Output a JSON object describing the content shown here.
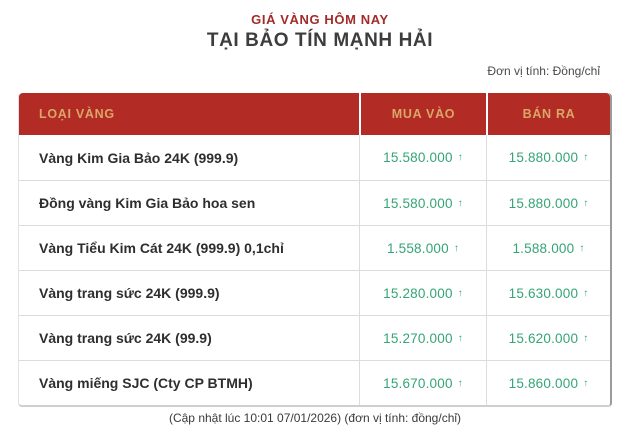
{
  "page": {
    "title_small": "GIÁ VÀNG HÔM NAY",
    "title_main": "TẠI BẢO TÍN MẠNH HẢI",
    "unit_note": "Đơn vị tính: Đồng/chỉ",
    "footer_note": "(Cập nhật lúc 10:01 07/01/2026) (đơn vị tính: đồng/chỉ)"
  },
  "colors": {
    "header_bg": "#b22b25",
    "header_text": "#d9a767",
    "title_red": "#a32b29",
    "price_green": "#35a477"
  },
  "table": {
    "columns": [
      "LOẠI VÀNG",
      "MUA VÀO",
      "BÁN RA"
    ],
    "trend_up_icon": "↑",
    "rows": [
      {
        "label": "Vàng Kim Gia Bảo 24K (999.9)",
        "buy": "15.580.000",
        "buy_trend": "up",
        "sell": "15.880.000",
        "sell_trend": "up"
      },
      {
        "label": "Đồng vàng Kim Gia Bảo hoa sen",
        "buy": "15.580.000",
        "buy_trend": "up",
        "sell": "15.880.000",
        "sell_trend": "up"
      },
      {
        "label": "Vàng Tiểu Kim Cát 24K (999.9) 0,1chỉ",
        "buy": "1.558.000",
        "buy_trend": "up",
        "sell": "1.588.000",
        "sell_trend": "up"
      },
      {
        "label": "Vàng trang sức 24K (999.9)",
        "buy": "15.280.000",
        "buy_trend": "up",
        "sell": "15.630.000",
        "sell_trend": "up"
      },
      {
        "label": "Vàng trang sức 24K (99.9)",
        "buy": "15.270.000",
        "buy_trend": "up",
        "sell": "15.620.000",
        "sell_trend": "up"
      },
      {
        "label": "Vàng miếng SJC (Cty CP BTMH)",
        "buy": "15.670.000",
        "buy_trend": "up",
        "sell": "15.860.000",
        "sell_trend": "up"
      }
    ]
  },
  "chart_data": {
    "type": "table",
    "title": "GIÁ VÀNG HÔM NAY TẠI BẢO TÍN MẠNH HẢI",
    "unit": "Đồng/chỉ",
    "columns": [
      "LOẠI VÀNG",
      "MUA VÀO",
      "BÁN RA"
    ],
    "rows": [
      [
        "Vàng Kim Gia Bảo 24K (999.9)",
        15580000,
        15880000
      ],
      [
        "Đồng vàng Kim Gia Bảo hoa sen",
        15580000,
        15880000
      ],
      [
        "Vàng Tiểu Kim Cát 24K (999.9) 0,1chỉ",
        1558000,
        1588000
      ],
      [
        "Vàng trang sức 24K (999.9)",
        15280000,
        15630000
      ],
      [
        "Vàng trang sức 24K (99.9)",
        15270000,
        15620000
      ],
      [
        "Vàng miếng SJC (Cty CP BTMH)",
        15670000,
        15860000
      ]
    ],
    "trend": "all values marked up (↑)",
    "annotations": [
      "(Cập nhật lúc 10:01 07/01/2026) (đơn vị tính: đồng/chỉ)"
    ]
  }
}
